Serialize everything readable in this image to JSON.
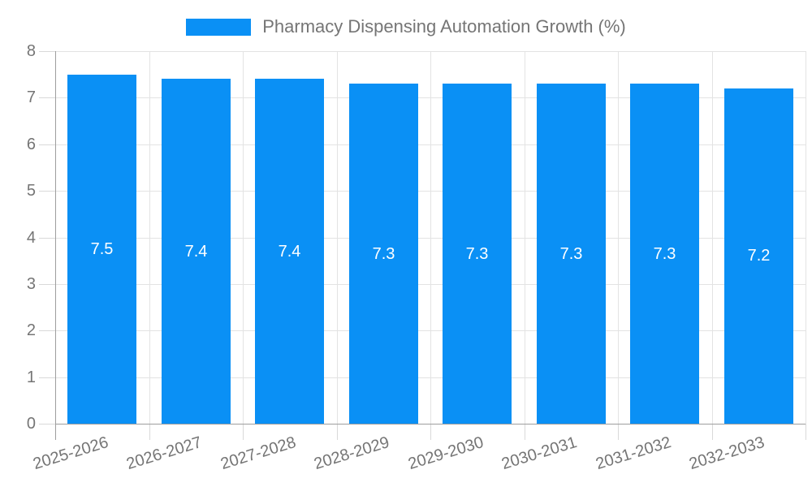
{
  "chart_data": {
    "type": "bar",
    "title": "Pharmacy Dispensing Automation Growth (%)",
    "categories": [
      "2025-2026",
      "2026-2027",
      "2027-2028",
      "2028-2029",
      "2029-2030",
      "2030-2031",
      "2031-2032",
      "2032-2033"
    ],
    "values": [
      7.5,
      7.4,
      7.4,
      7.3,
      7.3,
      7.3,
      7.3,
      7.2
    ],
    "value_labels": [
      "7.5",
      "7.4",
      "7.4",
      "7.3",
      "7.3",
      "7.3",
      "7.3",
      "7.2"
    ],
    "xlabel": "",
    "ylabel": "",
    "ylim": [
      0,
      8
    ],
    "y_ticks": [
      0,
      1,
      2,
      3,
      4,
      5,
      6,
      7,
      8
    ],
    "grid": true,
    "legend_position": "top-center",
    "legend_entries": [
      "Pharmacy Dispensing Automation Growth (%)"
    ],
    "colors": {
      "bar": "#0A90F5",
      "grid": "#e3e3e3",
      "tick": "#d9d9d9",
      "axis": "#9e9e9e",
      "axis_label": "#757575",
      "title": "#757575",
      "value_label": "#ffffff",
      "background": "#ffffff"
    }
  }
}
